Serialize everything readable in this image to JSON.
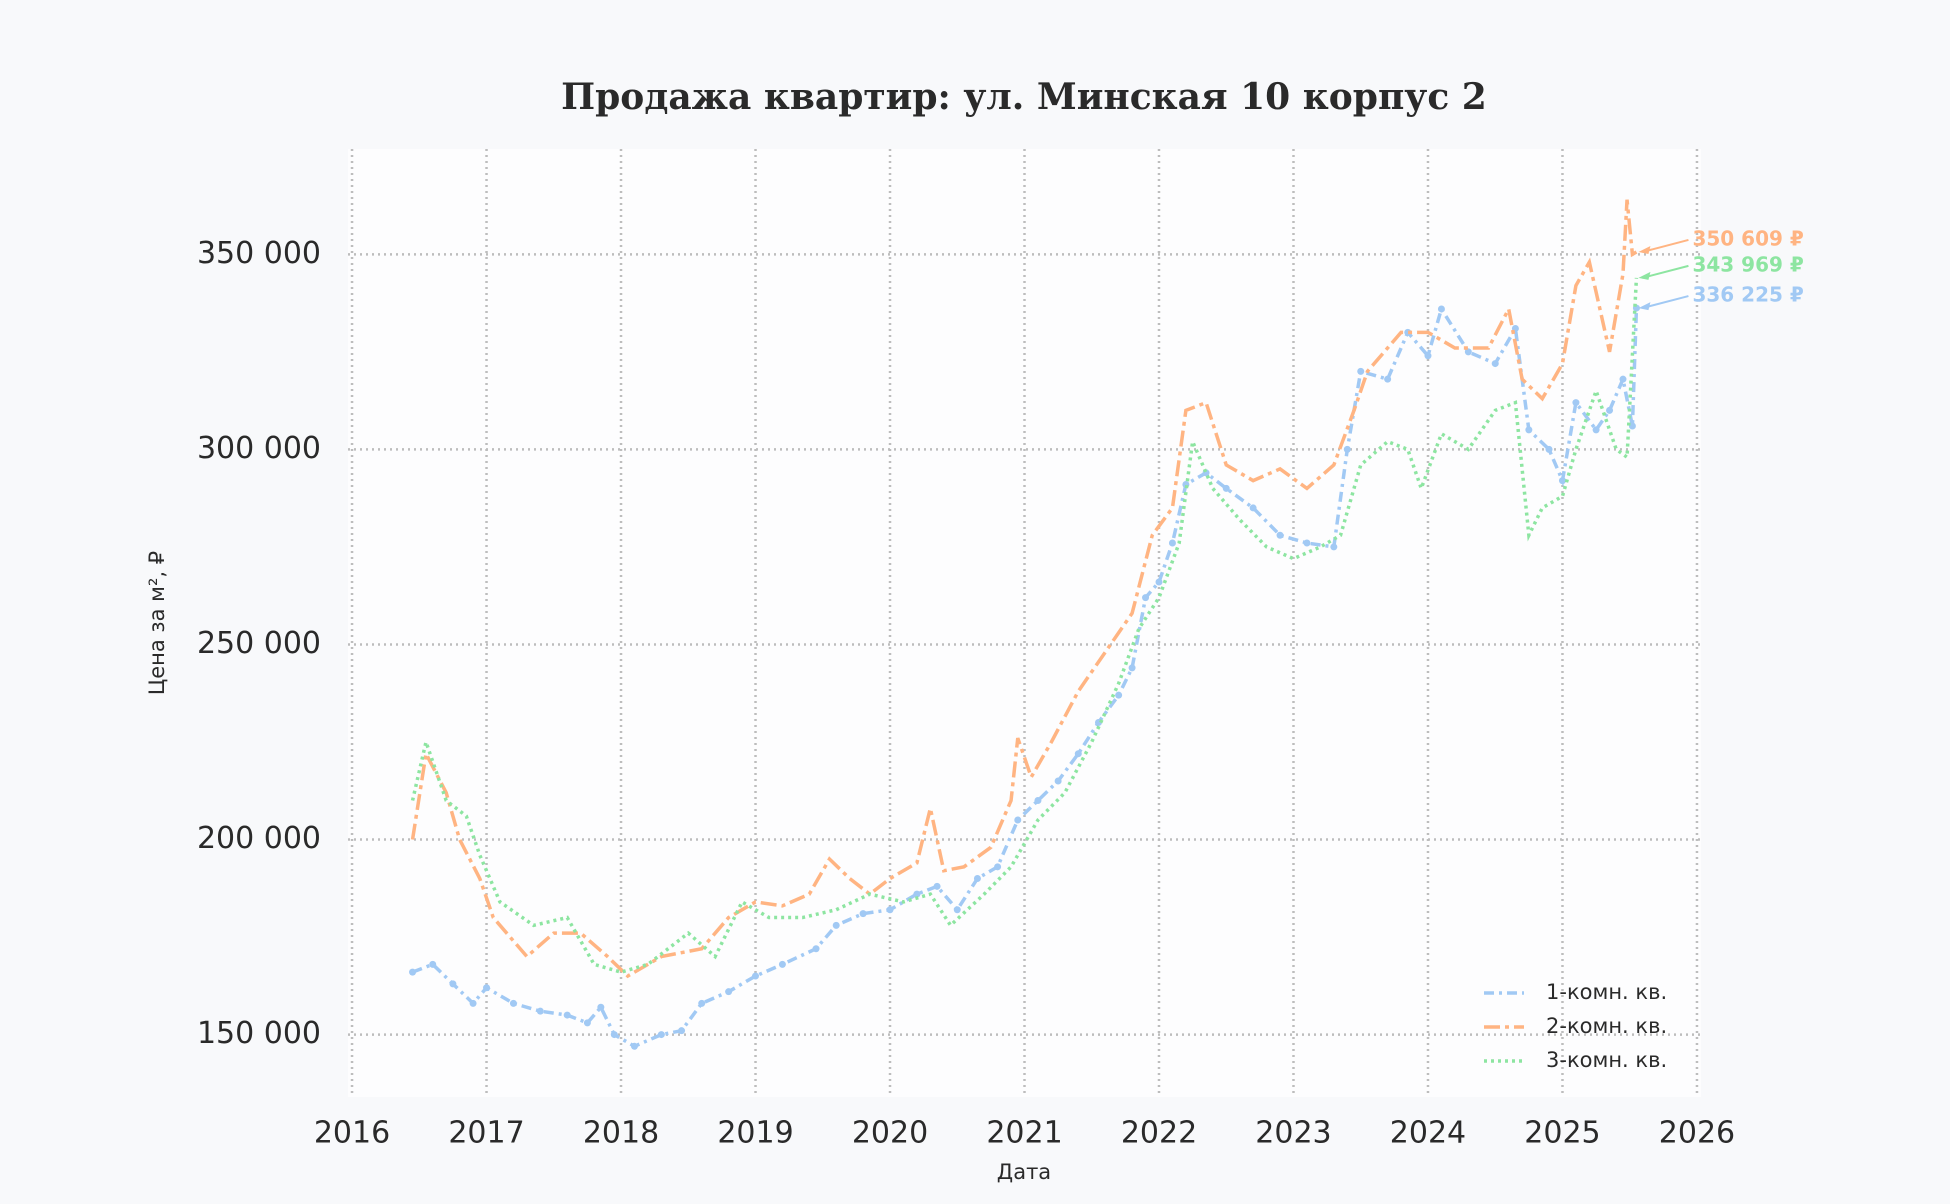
{
  "chart_data": {
    "type": "line",
    "title": "Продажа квартир: ул. Минская 10 корпус 2",
    "x_label": "Дата",
    "y_label": "Цена за м², ₽",
    "xlim": [
      2015.97,
      2026.03
    ],
    "xticks": [
      2016,
      2017,
      2018,
      2019,
      2020,
      2021,
      2022,
      2023,
      2024,
      2025,
      2026
    ],
    "ylim": [
      134000,
      377000
    ],
    "yticks": [
      {
        "value": 150000,
        "label": "150 000"
      },
      {
        "value": 200000,
        "label": "200 000"
      },
      {
        "value": 250000,
        "label": "250 000"
      },
      {
        "value": 300000,
        "label": "300 000"
      },
      {
        "value": 350000,
        "label": "350 000"
      }
    ],
    "grid": true,
    "legend": "lower right",
    "series": [
      {
        "name": "1-комн. кв.",
        "color": "#a1c9f4",
        "dash": "10 5 3 5",
        "markers": true,
        "end_label": "336 225 ₽",
        "x": [
          2016.45,
          2016.6,
          2016.75,
          2016.9,
          2017.0,
          2017.2,
          2017.4,
          2017.6,
          2017.75,
          2017.85,
          2017.95,
          2018.1,
          2018.3,
          2018.45,
          2018.6,
          2018.8,
          2019.0,
          2019.2,
          2019.45,
          2019.6,
          2019.8,
          2020.0,
          2020.2,
          2020.35,
          2020.5,
          2020.65,
          2020.8,
          2020.95,
          2021.1,
          2021.25,
          2021.4,
          2021.55,
          2021.7,
          2021.8,
          2021.9,
          2022.0,
          2022.1,
          2022.2,
          2022.35,
          2022.5,
          2022.7,
          2022.9,
          2023.1,
          2023.3,
          2023.4,
          2023.5,
          2023.7,
          2023.85,
          2024.0,
          2024.1,
          2024.3,
          2024.5,
          2024.65,
          2024.75,
          2024.9,
          2025.0,
          2025.1,
          2025.25,
          2025.35,
          2025.45,
          2025.52,
          2025.55
        ],
        "values": [
          166000,
          168000,
          163000,
          158000,
          162000,
          158000,
          156000,
          155000,
          153000,
          157000,
          150000,
          147000,
          150000,
          151000,
          158000,
          161000,
          165000,
          168000,
          172000,
          178000,
          181000,
          182000,
          186000,
          188000,
          182000,
          190000,
          193000,
          205000,
          210000,
          215000,
          222000,
          230000,
          237000,
          244000,
          262000,
          266000,
          276000,
          291000,
          294000,
          290000,
          285000,
          278000,
          276000,
          275000,
          300000,
          320000,
          318000,
          330000,
          324000,
          336000,
          325000,
          322000,
          331000,
          305000,
          300000,
          292000,
          312000,
          305000,
          310000,
          318000,
          306000,
          336225
        ]
      },
      {
        "name": "2-комн. кв.",
        "color": "#ffb482",
        "dash": "16 5 4 5",
        "markers": false,
        "end_label": "350 609 ₽",
        "x": [
          2016.45,
          2016.55,
          2016.7,
          2016.8,
          2016.95,
          2017.05,
          2017.3,
          2017.5,
          2017.7,
          2017.9,
          2018.05,
          2018.3,
          2018.6,
          2018.8,
          2019.0,
          2019.2,
          2019.4,
          2019.55,
          2019.7,
          2019.85,
          2020.0,
          2020.2,
          2020.3,
          2020.4,
          2020.55,
          2020.75,
          2020.9,
          2020.95,
          2021.05,
          2021.2,
          2021.4,
          2021.6,
          2021.8,
          2021.95,
          2022.1,
          2022.2,
          2022.35,
          2022.5,
          2022.7,
          2022.9,
          2023.1,
          2023.3,
          2023.45,
          2023.55,
          2023.8,
          2024.0,
          2024.2,
          2024.45,
          2024.6,
          2024.7,
          2024.85,
          2025.0,
          2025.1,
          2025.2,
          2025.35,
          2025.45,
          2025.48,
          2025.52,
          2025.55
        ],
        "values": [
          200000,
          222000,
          212000,
          200000,
          190000,
          180000,
          170000,
          176000,
          176000,
          170000,
          165000,
          170000,
          172000,
          180000,
          184000,
          183000,
          186000,
          195000,
          190000,
          186000,
          190000,
          194000,
          208000,
          192000,
          193000,
          198000,
          210000,
          226000,
          216000,
          225000,
          238000,
          248000,
          258000,
          278000,
          285000,
          310000,
          312000,
          296000,
          292000,
          295000,
          290000,
          296000,
          310000,
          320000,
          330000,
          330000,
          326000,
          326000,
          336000,
          318000,
          313000,
          322000,
          342000,
          348000,
          325000,
          345000,
          364000,
          350000,
          350609
        ]
      },
      {
        "name": "3-комн. кв.",
        "color": "#8de5a1",
        "dash": "3 4",
        "markers": false,
        "end_label": "343 969 ₽",
        "x": [
          2016.45,
          2016.55,
          2016.7,
          2016.85,
          2016.95,
          2017.1,
          2017.35,
          2017.6,
          2017.8,
          2018.0,
          2018.2,
          2018.5,
          2018.7,
          2018.9,
          2019.1,
          2019.35,
          2019.6,
          2019.85,
          2020.1,
          2020.3,
          2020.45,
          2020.7,
          2020.9,
          2021.1,
          2021.3,
          2021.5,
          2021.7,
          2021.85,
          2022.0,
          2022.15,
          2022.25,
          2022.4,
          2022.6,
          2022.8,
          2023.0,
          2023.2,
          2023.35,
          2023.5,
          2023.7,
          2023.85,
          2023.95,
          2024.1,
          2024.3,
          2024.5,
          2024.65,
          2024.75,
          2024.85,
          2025.0,
          2025.1,
          2025.25,
          2025.4,
          2025.48,
          2025.55
        ],
        "values": [
          210000,
          225000,
          210000,
          206000,
          196000,
          184000,
          178000,
          180000,
          168000,
          166000,
          168000,
          176000,
          170000,
          184000,
          180000,
          180000,
          182000,
          186000,
          184000,
          186000,
          178000,
          186000,
          193000,
          205000,
          212000,
          225000,
          240000,
          254000,
          262000,
          276000,
          302000,
          290000,
          282000,
          275000,
          272000,
          275000,
          278000,
          296000,
          302000,
          300000,
          290000,
          304000,
          300000,
          310000,
          312000,
          278000,
          285000,
          288000,
          300000,
          315000,
          300000,
          298000,
          343969
        ]
      }
    ]
  }
}
